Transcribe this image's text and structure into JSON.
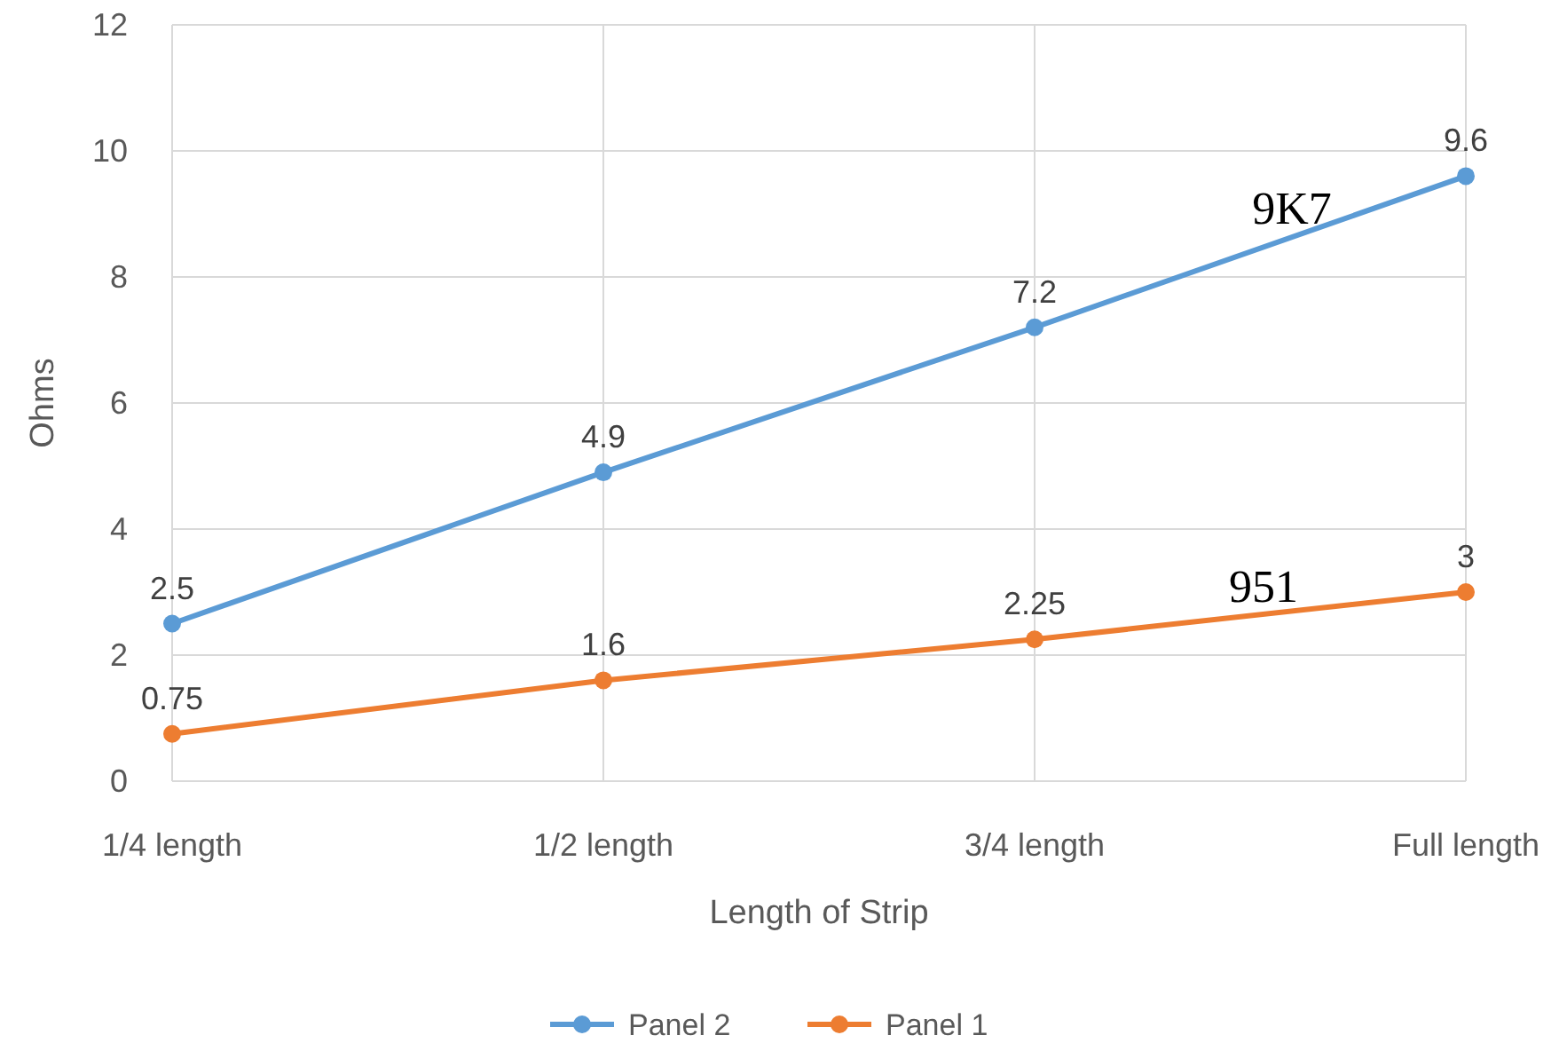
{
  "chart_data": {
    "type": "line",
    "xlabel": "Length of Strip",
    "ylabel": "Ohms",
    "categories": [
      "1/4 length",
      "1/2 length",
      "3/4 length",
      "Full length"
    ],
    "series": [
      {
        "name": "Panel 2",
        "color": "#5b9bd5",
        "values": [
          2.5,
          4.9,
          7.2,
          9.6
        ]
      },
      {
        "name": "Panel 1",
        "color": "#ed7d31",
        "values": [
          0.75,
          1.6,
          2.25,
          3
        ]
      }
    ],
    "ylim": [
      0,
      12
    ],
    "yticks": [
      0,
      2,
      4,
      6,
      8,
      10,
      12
    ],
    "grid": true,
    "legend": "bottom",
    "marker": "circle",
    "line_style": "solid",
    "data_labels": true,
    "annotations": [
      "9K7",
      "951"
    ]
  }
}
